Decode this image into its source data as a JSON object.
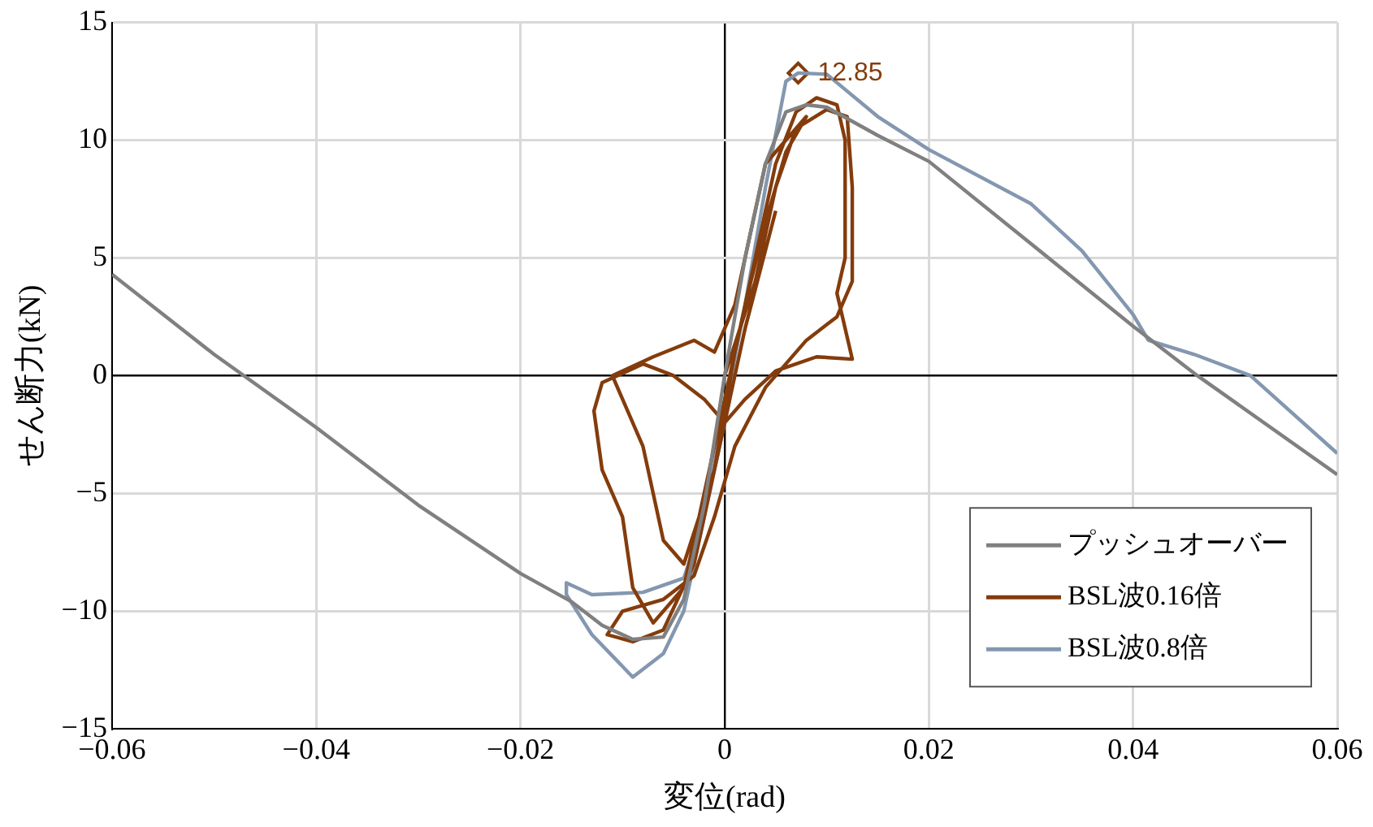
{
  "chart_data": {
    "type": "line",
    "xlabel": "変位(rad)",
    "ylabel": "せん断力(kN)",
    "xlim": [
      -0.06,
      0.06
    ],
    "xticks": [
      -0.06,
      -0.04,
      -0.02,
      0,
      0.02,
      0.04,
      0.06
    ],
    "ylim": [
      -15,
      15
    ],
    "yticks": [
      -15,
      -10,
      -5,
      0,
      5,
      10,
      15
    ],
    "grid": true,
    "legend": "bottom right",
    "marker": "none",
    "line_style": "solid",
    "series": [
      {
        "name": "プッシュオーバー",
        "color": "#808080",
        "x": [
          -0.06,
          -0.05,
          -0.04,
          -0.03,
          -0.02,
          -0.015,
          -0.012,
          -0.009,
          -0.006,
          -0.004,
          -0.002,
          0,
          0.002,
          0.004,
          0.006,
          0.008,
          0.01,
          0.015,
          0.02,
          0.03,
          0.04,
          0.0463,
          0.06
        ],
        "values": [
          4.3,
          0.9,
          -2.2,
          -5.5,
          -8.4,
          -9.6,
          -10.6,
          -11.2,
          -11.1,
          -9.5,
          -5.5,
          0,
          5,
          9,
          11.2,
          11.5,
          11.4,
          10.2,
          9.1,
          5.6,
          2.1,
          0,
          -4.2
        ]
      },
      {
        "name": "BSL波0.16倍",
        "color": "#843c0c",
        "x": [
          0,
          0.003,
          0.005,
          0.007,
          0.01,
          0.012,
          0.0125,
          0.0125,
          0.011,
          0.008,
          0.004,
          0.001,
          -0.001,
          -0.003,
          -0.006,
          -0.01,
          -0.0115,
          -0.009,
          -0.006,
          -0.003,
          -0.001,
          0.001,
          0.003,
          0.005,
          0.007,
          0.009,
          0.011,
          0.0118,
          0.0118,
          0.011,
          0.0125,
          0.009,
          0.005,
          0.002,
          0,
          -0.002,
          -0.005,
          -0.008,
          -0.012,
          -0.0128,
          -0.012,
          -0.01,
          -0.009,
          -0.007,
          -0.004,
          -0.002,
          0,
          0.002,
          0.004,
          0.006,
          0.008,
          0.004,
          0.0025,
          0.001,
          -0.001,
          -0.003,
          -0.007,
          -0.011,
          -0.008,
          -0.006,
          -0.004,
          -0.001,
          0.002,
          0.005
        ],
        "values": [
          0,
          4,
          8,
          10.5,
          11.3,
          11,
          8,
          4,
          2.5,
          1.5,
          -0.5,
          -3,
          -6,
          -8.5,
          -9.5,
          -10,
          -11,
          -11.3,
          -10.8,
          -8,
          -4,
          1,
          5,
          9,
          11.2,
          11.8,
          11.5,
          10,
          5,
          3.5,
          0.7,
          0.8,
          0.2,
          -1,
          -2,
          -1,
          0,
          0.5,
          -0.3,
          -1.5,
          -4,
          -6,
          -9,
          -10.5,
          -9,
          -5,
          -1,
          3,
          6.5,
          9.5,
          11,
          9,
          6,
          3,
          1,
          1.5,
          0.8,
          0,
          -3,
          -7,
          -8,
          -4,
          2,
          7
        ]
      },
      {
        "name": "BSL波0.8倍",
        "color": "#8497b0",
        "x": [
          0.0005,
          -0.002,
          -0.004,
          -0.008,
          -0.013,
          -0.0155,
          -0.0155,
          -0.013,
          -0.009,
          -0.006,
          -0.004,
          -0.002,
          0,
          0.002,
          0.004,
          0.006,
          0.0072,
          0.01,
          0.015,
          0.02,
          0.03,
          0.035,
          0.04,
          0.0415,
          0.046,
          0.0515,
          0.06
        ],
        "values": [
          -1,
          -6,
          -8.6,
          -9.2,
          -9.3,
          -8.8,
          -9.3,
          -11,
          -12.8,
          -11.8,
          -10,
          -6,
          -1.5,
          3,
          8,
          12.5,
          12.85,
          12.8,
          11,
          9.6,
          7.3,
          5.3,
          2.6,
          1.5,
          0.9,
          0,
          -3.3
        ]
      },
      {
        "type": "scatter",
        "color": "#843c0c",
        "marker": "diamond",
        "x": [
          0.0072
        ],
        "values": [
          12.85
        ],
        "value_labels": [
          "12.85"
        ]
      }
    ]
  }
}
